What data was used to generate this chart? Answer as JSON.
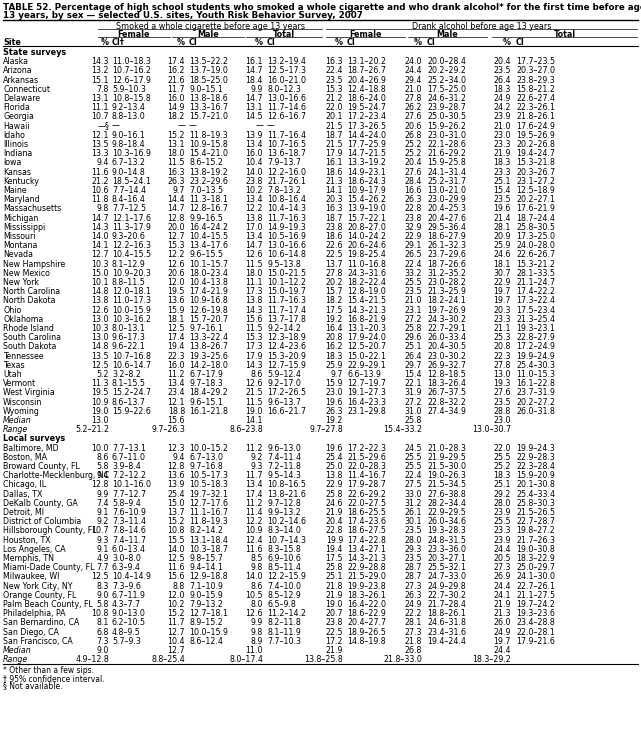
{
  "title_line1": "TABLE 52. Percentage of high school students who smoked a whole cigarette and who drank alcohol* for the first time before age",
  "title_line2": "13 years, by sex — selected U.S. sites, Youth Risk Behavior Survey, 2007",
  "col_group1": "Smoked a whole cigarette before age 13 years",
  "col_group2": "Drank alcohol before age 13 years",
  "section1": "State surveys",
  "section2": "Local surveys",
  "footnotes": [
    "* Other than a few sips.",
    "† 95% confidence interval.",
    "§ Not available."
  ],
  "state_rows": [
    [
      "Alaska",
      "14.3",
      "11.0–18.3",
      "17.4",
      "13.5–22.2",
      "16.1",
      "13.2–19.4",
      "16.3",
      "13.1–20.2",
      "24.0",
      "20.0–28.4",
      "20.4",
      "17.7–23.5"
    ],
    [
      "Arizona",
      "13.2",
      "10.7–16.2",
      "16.2",
      "13.7–19.0",
      "14.7",
      "12.5–17.3",
      "22.4",
      "18.7–26.7",
      "24.4",
      "20.2–29.2",
      "23.5",
      "20.3–27.0"
    ],
    [
      "Arkansas",
      "15.1",
      "12.6–17.9",
      "21.6",
      "18.5–25.0",
      "18.4",
      "16.0–21.0",
      "23.5",
      "20.4–26.9",
      "29.4",
      "25.2–34.0",
      "26.4",
      "23.8–29.3"
    ],
    [
      "Connecticut",
      "7.8",
      "5.9–10.3",
      "11.7",
      "9.0–15.1",
      "9.9",
      "8.0–12.3",
      "15.3",
      "12.4–18.8",
      "21.0",
      "17.5–25.0",
      "18.3",
      "15.8–21.2"
    ],
    [
      "Delaware",
      "13.1",
      "10.8–15.8",
      "16.0",
      "13.8–18.6",
      "14.7",
      "13.0–16.6",
      "21.2",
      "18.6–24.0",
      "27.8",
      "24.6–31.2",
      "24.9",
      "22.6–27.4"
    ],
    [
      "Florida",
      "11.1",
      "9.2–13.4",
      "14.9",
      "13.3–16.7",
      "13.1",
      "11.7–14.6",
      "22.0",
      "19.5–24.7",
      "26.2",
      "23.9–28.7",
      "24.2",
      "22.3–26.1"
    ],
    [
      "Georgia",
      "10.7",
      "8.8–13.0",
      "18.2",
      "15.7–21.0",
      "14.5",
      "12.6–16.7",
      "20.1",
      "17.2–23.4",
      "27.6",
      "25.0–30.5",
      "23.9",
      "21.8–26.1"
    ],
    [
      "Hawaii",
      "—§",
      "—",
      "—",
      "—",
      "—",
      "—",
      "21.5",
      "17.3–26.5",
      "20.6",
      "15.9–26.2",
      "21.0",
      "17.6–24.9"
    ],
    [
      "Idaho",
      "12.1",
      "9.0–16.1",
      "15.2",
      "11.8–19.3",
      "13.9",
      "11.7–16.4",
      "18.7",
      "14.4–24.0",
      "26.8",
      "23.0–31.0",
      "23.0",
      "19.5–26.9"
    ],
    [
      "Illinois",
      "13.5",
      "9.8–18.4",
      "13.1",
      "10.9–15.8",
      "13.4",
      "10.7–16.5",
      "21.5",
      "17.7–25.9",
      "25.2",
      "22.1–28.6",
      "23.3",
      "20.2–26.8"
    ],
    [
      "Indiana",
      "13.3",
      "10.3–16.9",
      "18.0",
      "15.4–21.0",
      "16.0",
      "13.6–18.7",
      "17.9",
      "14.7–21.5",
      "25.2",
      "21.6–29.2",
      "21.9",
      "19.4–24.7"
    ],
    [
      "Iowa",
      "9.4",
      "6.7–13.2",
      "11.5",
      "8.6–15.2",
      "10.4",
      "7.9–13.7",
      "16.1",
      "13.3–19.2",
      "20.4",
      "15.9–25.8",
      "18.3",
      "15.3–21.8"
    ],
    [
      "Kansas",
      "11.6",
      "9.0–14.8",
      "16.3",
      "13.8–19.2",
      "14.0",
      "12.2–16.0",
      "18.6",
      "14.9–23.1",
      "27.6",
      "24.1–31.4",
      "23.3",
      "20.3–26.7"
    ],
    [
      "Kentucky",
      "21.2",
      "18.5–24.1",
      "26.3",
      "23.2–29.6",
      "23.8",
      "21.7–26.1",
      "21.3",
      "18.6–24.3",
      "28.4",
      "25.2–31.7",
      "25.1",
      "23.1–27.2"
    ],
    [
      "Maine",
      "10.6",
      "7.7–14.4",
      "9.7",
      "7.0–13.5",
      "10.2",
      "7.8–13.2",
      "14.1",
      "10.9–17.9",
      "16.6",
      "13.0–21.0",
      "15.4",
      "12.5–18.9"
    ],
    [
      "Maryland",
      "11.8",
      "8.4–16.4",
      "14.4",
      "11.3–18.1",
      "13.4",
      "10.8–16.4",
      "20.3",
      "15.4–26.2",
      "26.3",
      "23.0–29.9",
      "23.5",
      "20.2–27.1"
    ],
    [
      "Massachusetts",
      "9.8",
      "7.7–12.5",
      "14.7",
      "12.8–16.7",
      "12.2",
      "10.4–14.3",
      "16.3",
      "13.9–19.0",
      "22.8",
      "20.4–25.3",
      "19.6",
      "17.6–21.9"
    ],
    [
      "Michigan",
      "14.7",
      "12.1–17.6",
      "12.8",
      "9.9–16.5",
      "13.8",
      "11.7–16.3",
      "18.7",
      "15.7–22.1",
      "23.8",
      "20.4–27.6",
      "21.4",
      "18.7–24.4"
    ],
    [
      "Mississippi",
      "14.3",
      "11.3–17.9",
      "20.0",
      "16.4–24.2",
      "17.0",
      "14.9–19.3",
      "23.8",
      "20.8–27.0",
      "32.9",
      "29.5–36.4",
      "28.1",
      "25.8–30.5"
    ],
    [
      "Missouri",
      "14.0",
      "9.3–20.6",
      "12.7",
      "10.4–15.5",
      "13.4",
      "10.5–16.9",
      "18.6",
      "14.0–24.2",
      "22.9",
      "18.6–27.9",
      "20.9",
      "17.3–25.0"
    ],
    [
      "Montana",
      "14.1",
      "12.2–16.3",
      "15.3",
      "13.4–17.6",
      "14.7",
      "13.0–16.6",
      "22.6",
      "20.6–24.6",
      "29.1",
      "26.1–32.3",
      "25.9",
      "24.0–28.0"
    ],
    [
      "Nevada",
      "12.7",
      "10.4–15.5",
      "12.2",
      "9.6–15.5",
      "12.6",
      "10.6–14.8",
      "22.5",
      "19.8–25.4",
      "26.5",
      "23.7–29.6",
      "24.6",
      "22.6–26.7"
    ],
    [
      "New Hampshire",
      "10.3",
      "8.1–12.9",
      "12.6",
      "10.1–15.7",
      "11.5",
      "9.5–13.8",
      "13.7",
      "11.0–16.8",
      "22.4",
      "18.7–26.6",
      "18.1",
      "15.3–21.2"
    ],
    [
      "New Mexico",
      "15.0",
      "10.9–20.3",
      "20.6",
      "18.0–23.4",
      "18.0",
      "15.0–21.5",
      "27.8",
      "24.3–31.6",
      "33.2",
      "31.2–35.2",
      "30.7",
      "28.1–33.5"
    ],
    [
      "New York",
      "10.1",
      "8.8–11.5",
      "12.0",
      "10.4–13.8",
      "11.1",
      "10.1–12.2",
      "20.2",
      "18.2–22.4",
      "25.5",
      "23.0–28.2",
      "22.9",
      "21.1–24.7"
    ],
    [
      "North Carolina",
      "14.8",
      "12.0–18.1",
      "19.5",
      "17.4–21.9",
      "17.3",
      "15.0–19.7",
      "15.7",
      "12.8–19.0",
      "23.5",
      "21.3–25.9",
      "19.7",
      "17.4–22.2"
    ],
    [
      "North Dakota",
      "13.8",
      "11.0–17.3",
      "13.6",
      "10.9–16.8",
      "13.8",
      "11.7–16.3",
      "18.2",
      "15.4–21.5",
      "21.0",
      "18.2–24.1",
      "19.7",
      "17.3–22.4"
    ],
    [
      "Ohio",
      "12.6",
      "10.0–15.9",
      "15.9",
      "12.6–19.8",
      "14.3",
      "11.7–17.4",
      "17.5",
      "14.3–21.3",
      "23.1",
      "19.7–26.9",
      "20.3",
      "17.5–23.4"
    ],
    [
      "Oklahoma",
      "13.0",
      "10.3–16.2",
      "18.1",
      "15.7–20.7",
      "15.6",
      "13.7–17.8",
      "19.2",
      "16.8–21.9",
      "27.2",
      "24.3–30.2",
      "23.3",
      "21.3–25.4"
    ],
    [
      "Rhode Island",
      "10.3",
      "8.0–13.1",
      "12.5",
      "9.7–16.1",
      "11.5",
      "9.2–14.2",
      "16.4",
      "13.1–20.3",
      "25.8",
      "22.7–29.1",
      "21.1",
      "19.3–23.1"
    ],
    [
      "South Carolina",
      "13.0",
      "9.6–17.3",
      "17.4",
      "13.3–22.4",
      "15.3",
      "12.3–18.9",
      "20.8",
      "17.9–24.0",
      "29.6",
      "26.0–33.4",
      "25.3",
      "22.8–27.9"
    ],
    [
      "South Dakota",
      "14.8",
      "9.6–22.1",
      "19.4",
      "13.8–26.7",
      "17.3",
      "12.4–23.6",
      "16.2",
      "12.5–20.7",
      "25.1",
      "20.4–30.5",
      "20.8",
      "17.2–24.9"
    ],
    [
      "Tennessee",
      "13.5",
      "10.7–16.8",
      "22.3",
      "19.3–25.6",
      "17.9",
      "15.3–20.9",
      "18.3",
      "15.0–22.1",
      "26.4",
      "23.0–30.2",
      "22.3",
      "19.9–24.9"
    ],
    [
      "Texas",
      "12.5",
      "10.6–14.7",
      "16.0",
      "14.2–18.0",
      "14.3",
      "12.7–15.9",
      "25.9",
      "22.9–29.1",
      "29.7",
      "26.9–32.7",
      "27.8",
      "25.4–30.3"
    ],
    [
      "Utah",
      "5.2",
      "3.2–8.2",
      "11.2",
      "6.7–17.9",
      "8.6",
      "5.9–12.4",
      "9.7",
      "6.6–13.9",
      "15.4",
      "12.8–18.5",
      "13.0",
      "11.0–15.3"
    ],
    [
      "Vermont",
      "11.3",
      "8.1–15.5",
      "13.4",
      "9.7–18.3",
      "12.6",
      "9.2–17.0",
      "15.9",
      "12.7–19.7",
      "22.1",
      "18.3–26.4",
      "19.3",
      "16.1–22.8"
    ],
    [
      "West Virginia",
      "19.5",
      "15.2–24.7",
      "23.4",
      "18.4–29.2",
      "21.5",
      "17.2–26.5",
      "23.0",
      "19.1–27.3",
      "31.9",
      "26.7–37.5",
      "27.6",
      "23.7–31.9"
    ],
    [
      "Wisconsin",
      "10.9",
      "8.6–13.7",
      "12.1",
      "9.6–15.1",
      "11.5",
      "9.6–13.7",
      "19.6",
      "16.4–23.3",
      "27.2",
      "22.8–32.2",
      "23.5",
      "20.2–27.2"
    ],
    [
      "Wyoming",
      "19.0",
      "15.9–22.6",
      "18.8",
      "16.1–21.8",
      "19.0",
      "16.6–21.7",
      "26.3",
      "23.1–29.8",
      "31.0",
      "27.4–34.9",
      "28.8",
      "26.0–31.8"
    ]
  ],
  "state_median": [
    "Median",
    "13.0",
    "",
    "15.6",
    "",
    "14.1",
    "",
    "19.2",
    "",
    "25.8",
    "",
    "23.0",
    ""
  ],
  "state_range": [
    "Range",
    "5.2–21.2",
    "",
    "9.7–26.3",
    "",
    "8.6–23.8",
    "",
    "9.7–27.8",
    "",
    "15.4–33.2",
    "",
    "13.0–30.7",
    ""
  ],
  "local_rows": [
    [
      "Baltimore, MD",
      "10.0",
      "7.7–13.1",
      "12.3",
      "10.0–15.2",
      "11.2",
      "9.6–13.0",
      "19.6",
      "17.2–22.3",
      "24.5",
      "21.0–28.3",
      "22.0",
      "19.9–24.3"
    ],
    [
      "Boston, MA",
      "8.6",
      "6.7–11.0",
      "9.4",
      "6.7–13.0",
      "9.2",
      "7.4–11.4",
      "25.4",
      "21.5–29.6",
      "25.5",
      "21.9–29.5",
      "25.5",
      "22.9–28.3"
    ],
    [
      "Broward County, FL",
      "5.8",
      "3.9–8.4",
      "12.8",
      "9.7–16.8",
      "9.3",
      "7.2–11.8",
      "25.0",
      "22.0–28.3",
      "25.5",
      "21.5–30.0",
      "25.2",
      "22.3–28.4"
    ],
    [
      "Charlotte-Mecklenburg, NC",
      "9.4",
      "7.2–12.2",
      "13.6",
      "10.5–17.3",
      "11.7",
      "9.5–14.3",
      "13.8",
      "11.4–16.7",
      "22.4",
      "19.0–26.3",
      "18.3",
      "15.9–20.9"
    ],
    [
      "Chicago, IL",
      "12.8",
      "10.1–16.0",
      "13.9",
      "10.5–18.3",
      "13.4",
      "10.8–16.5",
      "22.9",
      "17.9–28.7",
      "27.5",
      "21.5–34.5",
      "25.1",
      "20.1–30.8"
    ],
    [
      "Dallas, TX",
      "9.9",
      "7.7–12.7",
      "25.4",
      "19.7–32.1",
      "17.4",
      "13.8–21.6",
      "25.8",
      "22.6–29.2",
      "33.0",
      "27.6–38.8",
      "29.2",
      "25.4–33.4"
    ],
    [
      "DeKalb County, GA",
      "7.4",
      "5.8–9.4",
      "15.0",
      "12.7–17.6",
      "11.2",
      "9.7–12.8",
      "24.6",
      "22.0–27.5",
      "31.2",
      "28.2–34.4",
      "28.0",
      "25.8–30.3"
    ],
    [
      "Detroit, MI",
      "9.1",
      "7.6–10.9",
      "13.7",
      "11.1–16.7",
      "11.4",
      "9.9–13.2",
      "21.9",
      "18.6–25.5",
      "26.1",
      "22.9–29.5",
      "23.9",
      "21.5–26.5"
    ],
    [
      "District of Columbia",
      "9.2",
      "7.3–11.4",
      "15.2",
      "11.8–19.3",
      "12.2",
      "10.2–14.6",
      "20.4",
      "17.4–23.6",
      "30.1",
      "26.0–34.6",
      "25.5",
      "22.7–28.7"
    ],
    [
      "Hillsborough County, FL",
      "10.7",
      "7.8–14.6",
      "10.8",
      "8.2–14.2",
      "10.9",
      "8.3–14.0",
      "22.8",
      "18.6–27.5",
      "23.5",
      "19.3–28.3",
      "23.3",
      "19.8–27.2"
    ],
    [
      "Houston, TX",
      "9.3",
      "7.4–11.7",
      "15.5",
      "13.1–18.4",
      "12.4",
      "10.7–14.3",
      "19.9",
      "17.4–22.8",
      "28.0",
      "24.8–31.5",
      "23.9",
      "21.7–26.3"
    ],
    [
      "Los Angeles, CA",
      "9.1",
      "6.0–13.4",
      "14.0",
      "10.3–18.7",
      "11.6",
      "8.3–15.8",
      "19.4",
      "13.4–27.1",
      "29.3",
      "23.3–36.0",
      "24.4",
      "19.0–30.8"
    ],
    [
      "Memphis, TN",
      "4.9",
      "3.0–8.0",
      "12.5",
      "9.8–15.7",
      "8.5",
      "6.9–10.6",
      "17.5",
      "14.3–21.3",
      "23.5",
      "20.3–27.1",
      "20.5",
      "18.3–22.9"
    ],
    [
      "Miami-Dade County, FL",
      "7.7",
      "6.3–9.4",
      "11.6",
      "9.4–14.1",
      "9.8",
      "8.5–11.4",
      "25.8",
      "22.9–28.8",
      "28.7",
      "25.5–32.1",
      "27.3",
      "25.0–29.7"
    ],
    [
      "Milwaukee, WI",
      "12.5",
      "10.4–14.9",
      "15.6",
      "12.9–18.8",
      "14.0",
      "12.2–15.9",
      "25.1",
      "21.5–29.0",
      "28.7",
      "24.7–33.0",
      "26.9",
      "24.1–30.0"
    ],
    [
      "New York City, NY",
      "8.3",
      "7.3–9.6",
      "8.8",
      "7.1–10.9",
      "8.6",
      "7.4–10.0",
      "21.8",
      "19.9–23.8",
      "27.3",
      "24.9–29.8",
      "24.4",
      "22.7–26.1"
    ],
    [
      "Orange County, FL",
      "9.0",
      "6.7–11.9",
      "12.0",
      "9.0–15.9",
      "10.5",
      "8.5–12.9",
      "21.9",
      "18.3–26.1",
      "26.3",
      "22.7–30.2",
      "24.1",
      "21.1–27.5"
    ],
    [
      "Palm Beach County, FL",
      "5.8",
      "4.3–7.7",
      "10.2",
      "7.9–13.2",
      "8.0",
      "6.5–9.8",
      "19.0",
      "16.4–22.0",
      "24.9",
      "21.7–28.4",
      "21.9",
      "19.7–24.2"
    ],
    [
      "Philadelphia, PA",
      "10.8",
      "9.0–13.0",
      "15.2",
      "12.7–18.1",
      "12.6",
      "11.2–14.2",
      "20.7",
      "18.6–22.9",
      "22.2",
      "18.8–26.1",
      "21.3",
      "19.3–23.6"
    ],
    [
      "San Bernardino, CA",
      "8.1",
      "6.2–10.5",
      "11.7",
      "8.9–15.2",
      "9.9",
      "8.2–11.8",
      "23.8",
      "20.4–27.7",
      "28.1",
      "24.6–31.8",
      "26.0",
      "23.4–28.8"
    ],
    [
      "San Diego, CA",
      "6.8",
      "4.8–9.5",
      "12.7",
      "10.0–15.9",
      "9.8",
      "8.1–11.9",
      "22.5",
      "18.9–26.5",
      "27.3",
      "23.4–31.6",
      "24.9",
      "22.0–28.1"
    ],
    [
      "San Francisco, CA",
      "7.3",
      "5.7–9.3",
      "10.4",
      "8.6–12.4",
      "8.9",
      "7.7–10.3",
      "17.2",
      "14.8–19.8",
      "21.8",
      "19.4–24.4",
      "19.7",
      "17.9–21.6"
    ]
  ],
  "local_median": [
    "Median",
    "9.0",
    "",
    "12.7",
    "",
    "11.0",
    "",
    "21.9",
    "",
    "26.8",
    "",
    "24.4",
    ""
  ],
  "local_range": [
    "Range",
    "4.9–12.8",
    "",
    "8.8–25.4",
    "",
    "8.0–17.4",
    "",
    "13.8–25.8",
    "",
    "21.8–33.0",
    "",
    "18.3–29.2",
    ""
  ]
}
